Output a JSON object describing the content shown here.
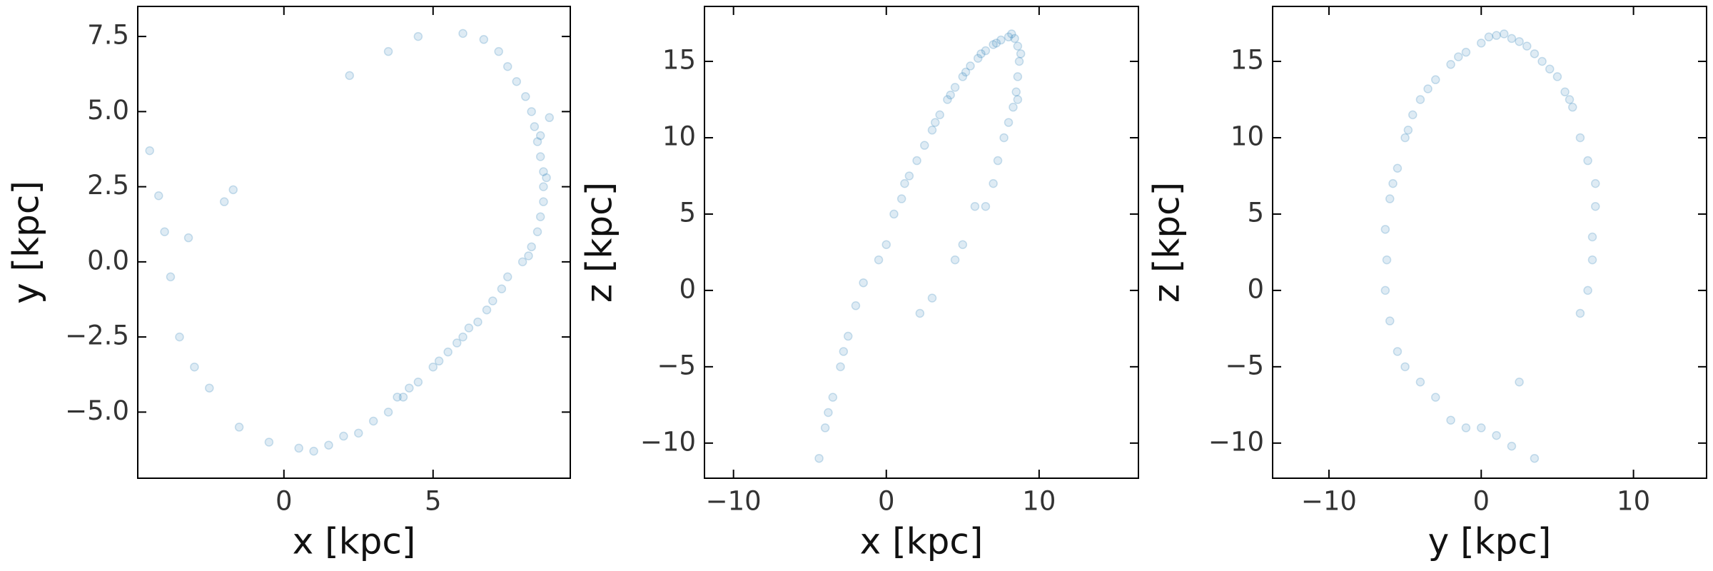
{
  "chart_data": [
    {
      "type": "scatter",
      "xlabel": "x [kpc]",
      "ylabel": "y [kpc]",
      "color": "#1f77b4",
      "opacity": 0.15,
      "xlim": [
        -4.9,
        9.6
      ],
      "ylim": [
        -7.2,
        8.5
      ],
      "xticks": [
        0,
        5
      ],
      "yticks": [
        {
          "value": -5,
          "label": "−5.0"
        },
        {
          "value": -2.5,
          "label": "−2.5"
        },
        {
          "value": 0,
          "label": "0.0"
        },
        2.5,
        {
          "value": 5,
          "label": "5.0"
        },
        7.5
      ],
      "x": [
        -4.5,
        -4.2,
        -4,
        -3.8,
        -3.5,
        -3,
        -2.5,
        -1.5,
        -0.5,
        0.5,
        1.5,
        2.5,
        3.5,
        4,
        4.5,
        5,
        5.5,
        6,
        6.5,
        7,
        7.5,
        8,
        8.3,
        8.5,
        8.6,
        8.7,
        8.7,
        8.7,
        8.6,
        8.5,
        8.4,
        8.3,
        8.1,
        7.8,
        7.5,
        7.2,
        6.7,
        6,
        4.5,
        3.5,
        2.2,
        -2,
        -1.7,
        -3.2,
        3.8,
        4.2,
        5.2,
        6.2,
        6.8,
        7.3,
        8.2,
        8.8,
        8.6,
        8.9,
        5.8,
        3,
        2,
        1
      ],
      "values": [
        3.7,
        2.2,
        1,
        -0.5,
        -2.5,
        -3.5,
        -4.2,
        -5.5,
        -6,
        -6.2,
        -6.1,
        -5.7,
        -5,
        -4.5,
        -4,
        -3.5,
        -3,
        -2.5,
        -2,
        -1.3,
        -0.5,
        0,
        0.5,
        1,
        1.5,
        2,
        2.5,
        3,
        3.5,
        4,
        4.5,
        5,
        5.5,
        6,
        6.5,
        7,
        7.4,
        7.6,
        7.5,
        7,
        6.2,
        2,
        2.4,
        0.8,
        -4.5,
        -4.2,
        -3.3,
        -2.2,
        -1.6,
        -0.9,
        0.2,
        2.8,
        4.2,
        4.8,
        -2.7,
        -5.3,
        -5.8,
        -6.3
      ]
    },
    {
      "type": "scatter",
      "xlabel": "x [kpc]",
      "ylabel": "z [kpc]",
      "color": "#1f77b4",
      "opacity": 0.15,
      "xlim": [
        -11.9,
        16.5
      ],
      "ylim": [
        -12.3,
        18.6
      ],
      "xticks": [
        {
          "value": -10,
          "label": "−10"
        },
        0,
        10
      ],
      "yticks": [
        {
          "value": -10,
          "label": "−10"
        },
        {
          "value": -5,
          "label": "−5"
        },
        0,
        5,
        10,
        15
      ],
      "x": [
        -4.4,
        -4,
        -3.5,
        -3,
        -2.5,
        -2,
        -1.5,
        -0.5,
        0,
        0.5,
        1,
        1.5,
        2,
        2.5,
        3,
        3.5,
        4,
        4.5,
        5,
        5.5,
        6,
        6.5,
        7,
        7.5,
        8,
        8.4,
        8.6,
        8.7,
        8.6,
        8.5,
        8.3,
        8,
        7.7,
        7.3,
        7,
        6.5,
        5,
        4.5,
        3,
        2.2,
        5.8,
        1.2,
        3.2,
        4.2,
        5.2,
        6.2,
        7.2,
        8.2,
        8.8,
        8.6,
        -3.8,
        -2.8
      ],
      "values": [
        -11,
        -9,
        -7,
        -5,
        -3,
        -1,
        0.5,
        2,
        3,
        5,
        6,
        7.5,
        8.5,
        9.5,
        10.5,
        11.5,
        12.5,
        13.3,
        14,
        14.7,
        15.2,
        15.7,
        16.1,
        16.4,
        16.6,
        16.5,
        16,
        15,
        14,
        13,
        12,
        11,
        10,
        8.5,
        7,
        5.5,
        3,
        2,
        -0.5,
        -1.5,
        5.5,
        7,
        11,
        12.8,
        14.3,
        15.5,
        16.2,
        16.8,
        15.5,
        12.5,
        -8,
        -4
      ]
    },
    {
      "type": "scatter",
      "xlabel": "y [kpc]",
      "ylabel": "z [kpc]",
      "color": "#1f77b4",
      "opacity": 0.15,
      "xlim": [
        -13.7,
        14.8
      ],
      "ylim": [
        -12.3,
        18.6
      ],
      "xticks": [
        {
          "value": -10,
          "label": "−10"
        },
        0,
        10
      ],
      "yticks": [
        {
          "value": -10,
          "label": "−10"
        },
        {
          "value": -5,
          "label": "−5"
        },
        0,
        5,
        10,
        15
      ],
      "x": [
        -6.3,
        -6.2,
        -6.3,
        -6,
        -5.5,
        -5,
        -4.5,
        -4,
        -3,
        -2,
        -1,
        0,
        0.5,
        1,
        2,
        3,
        4,
        5,
        5.5,
        6,
        6.5,
        7,
        7.5,
        7.5,
        7.3,
        7.3,
        6.5,
        7,
        -6,
        -5.5,
        -5,
        -4,
        -3,
        -2,
        -1,
        0,
        1,
        2,
        3.5,
        2.5,
        -5.8,
        -4.8,
        -3.5,
        -1.5,
        1.5,
        2.5,
        3.5,
        4.5,
        5.8
      ],
      "values": [
        0,
        2,
        4,
        6,
        8,
        10,
        11.5,
        12.5,
        13.8,
        14.8,
        15.6,
        16.2,
        16.6,
        16.7,
        16.5,
        16,
        15,
        14,
        13,
        12,
        10,
        8.5,
        7,
        5.5,
        3.5,
        2,
        -1.5,
        0,
        -2,
        -4,
        -5,
        -6,
        -7,
        -8.5,
        -9,
        -9,
        -9.5,
        -10.2,
        -11,
        -6,
        7,
        10.5,
        13.2,
        15.3,
        16.8,
        16.3,
        15.5,
        14.5,
        12.5
      ]
    }
  ]
}
